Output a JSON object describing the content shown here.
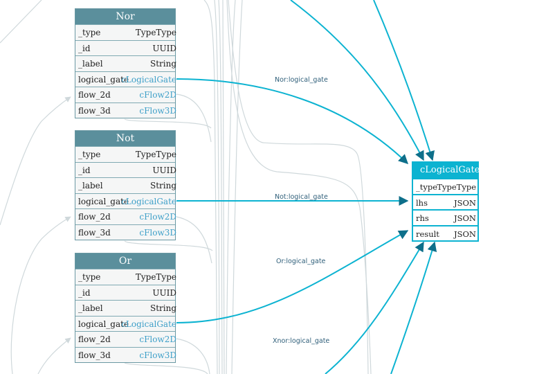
{
  "tables": {
    "nor": {
      "title": "Nor",
      "rows": [
        {
          "field": "_type",
          "type": "TypeType"
        },
        {
          "field": "_id",
          "type": "UUID"
        },
        {
          "field": "_label",
          "type": "String"
        },
        {
          "field": "logical_gate",
          "type": "cLogicalGate"
        },
        {
          "field": "flow_2d",
          "type": "cFlow2D"
        },
        {
          "field": "flow_3d",
          "type": "cFlow3D"
        }
      ]
    },
    "not": {
      "title": "Not",
      "rows": [
        {
          "field": "_type",
          "type": "TypeType"
        },
        {
          "field": "_id",
          "type": "UUID"
        },
        {
          "field": "_label",
          "type": "String"
        },
        {
          "field": "logical_gate",
          "type": "cLogicalGate"
        },
        {
          "field": "flow_2d",
          "type": "cFlow2D"
        },
        {
          "field": "flow_3d",
          "type": "cFlow3D"
        }
      ]
    },
    "or": {
      "title": "Or",
      "rows": [
        {
          "field": "_type",
          "type": "TypeType"
        },
        {
          "field": "_id",
          "type": "UUID"
        },
        {
          "field": "_label",
          "type": "String"
        },
        {
          "field": "logical_gate",
          "type": "cLogicalGate"
        },
        {
          "field": "flow_2d",
          "type": "cFlow2D"
        },
        {
          "field": "flow_3d",
          "type": "cFlow3D"
        }
      ]
    },
    "clogicalgate": {
      "title": "cLogicalGate",
      "rows": [
        {
          "field": "_type",
          "type": "TypeType"
        },
        {
          "field": "lhs",
          "type": "JSON"
        },
        {
          "field": "rhs",
          "type": "JSON"
        },
        {
          "field": "result",
          "type": "JSON"
        }
      ]
    }
  },
  "edge_labels": {
    "nor": "Nor:logical_gate",
    "not": "Not:logical_gate",
    "or": "Or:logical_gate",
    "xnor": "Xnor:logical_gate"
  },
  "colors": {
    "accent_edge": "#0cb3d1",
    "header": "#5b8f9c",
    "link_text": "#3d9fc8",
    "faint_edge": "#cfd8db"
  }
}
